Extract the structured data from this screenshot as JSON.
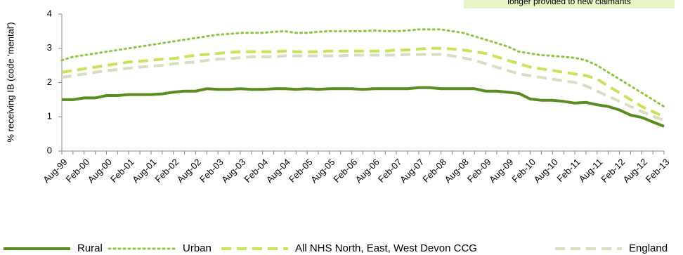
{
  "chart_data": {
    "type": "line",
    "annotation": "longer provided to new claimants",
    "y_label": "% receiving IB (code 'mental')",
    "categories": [
      "Aug-99",
      null,
      "Feb-00",
      null,
      "Aug-00",
      null,
      "Feb-01",
      null,
      "Aug-01",
      null,
      "Feb-02",
      null,
      "Aug-02",
      null,
      "Feb-03",
      null,
      "Aug-03",
      null,
      "Feb-04",
      null,
      "Aug-04",
      null,
      "Feb-05",
      null,
      "Aug-05",
      null,
      "Feb-06",
      null,
      "Aug-06",
      null,
      "Feb-07",
      null,
      "Aug-07",
      null,
      "Feb-08",
      null,
      "Aug-08",
      null,
      "Feb-09",
      null,
      "Aug-09",
      null,
      "Feb-10",
      null,
      "Aug-10",
      null,
      "Feb-11",
      null,
      "Aug-11",
      null,
      "Feb-12",
      null,
      "Aug-12",
      null,
      "Feb-13"
    ],
    "series": [
      {
        "name": "Rural",
        "color": "#5b8c1f",
        "style": "solid",
        "values": [
          1.5,
          1.5,
          1.55,
          1.55,
          1.62,
          1.62,
          1.65,
          1.65,
          1.65,
          1.67,
          1.72,
          1.75,
          1.75,
          1.82,
          1.8,
          1.8,
          1.82,
          1.8,
          1.8,
          1.82,
          1.82,
          1.8,
          1.82,
          1.8,
          1.82,
          1.82,
          1.82,
          1.8,
          1.82,
          1.82,
          1.82,
          1.82,
          1.85,
          1.85,
          1.82,
          1.82,
          1.82,
          1.82,
          1.75,
          1.75,
          1.72,
          1.68,
          1.52,
          1.48,
          1.48,
          1.45,
          1.4,
          1.42,
          1.35,
          1.3,
          1.2,
          1.05,
          0.98,
          0.85,
          0.72
        ]
      },
      {
        "name": "Urban",
        "color": "#8cc63f",
        "style": "dotted",
        "values": [
          2.65,
          2.75,
          2.8,
          2.85,
          2.9,
          2.95,
          3.0,
          3.05,
          3.1,
          3.15,
          3.2,
          3.25,
          3.3,
          3.35,
          3.4,
          3.42,
          3.45,
          3.45,
          3.45,
          3.48,
          3.5,
          3.45,
          3.45,
          3.48,
          3.5,
          3.5,
          3.5,
          3.5,
          3.52,
          3.5,
          3.5,
          3.52,
          3.55,
          3.55,
          3.55,
          3.5,
          3.45,
          3.35,
          3.25,
          3.15,
          3.05,
          2.9,
          2.85,
          2.8,
          2.78,
          2.75,
          2.72,
          2.65,
          2.5,
          2.3,
          2.1,
          1.9,
          1.7,
          1.5,
          1.3
        ]
      },
      {
        "name": "All NHS North, East, West Devon CCG",
        "color": "#c5e65a",
        "style": "dashed",
        "values": [
          2.3,
          2.35,
          2.4,
          2.45,
          2.5,
          2.55,
          2.6,
          2.62,
          2.65,
          2.68,
          2.7,
          2.75,
          2.8,
          2.82,
          2.85,
          2.88,
          2.9,
          2.9,
          2.9,
          2.9,
          2.92,
          2.9,
          2.9,
          2.9,
          2.92,
          2.92,
          2.92,
          2.92,
          2.92,
          2.92,
          2.95,
          2.95,
          2.98,
          3.0,
          3.0,
          2.98,
          2.95,
          2.9,
          2.85,
          2.75,
          2.65,
          2.55,
          2.45,
          2.4,
          2.35,
          2.3,
          2.25,
          2.2,
          2.1,
          1.9,
          1.7,
          1.5,
          1.3,
          1.15,
          1.0
        ]
      },
      {
        "name": "England",
        "color": "#d6dfc2",
        "style": "dashed",
        "values": [
          2.15,
          2.2,
          2.25,
          2.3,
          2.35,
          2.38,
          2.42,
          2.45,
          2.48,
          2.5,
          2.55,
          2.58,
          2.6,
          2.65,
          2.68,
          2.7,
          2.72,
          2.75,
          2.75,
          2.75,
          2.78,
          2.78,
          2.78,
          2.78,
          2.78,
          2.78,
          2.8,
          2.8,
          2.8,
          2.8,
          2.8,
          2.82,
          2.82,
          2.82,
          2.82,
          2.78,
          2.72,
          2.65,
          2.55,
          2.45,
          2.35,
          2.25,
          2.2,
          2.15,
          2.1,
          2.05,
          2.0,
          1.9,
          1.75,
          1.6,
          1.45,
          1.3,
          1.15,
          1.02,
          0.9
        ]
      }
    ],
    "ylim": [
      0,
      4
    ],
    "yticks": [
      0,
      1,
      2,
      3,
      4
    ],
    "grid": false,
    "legend": "bottom"
  }
}
